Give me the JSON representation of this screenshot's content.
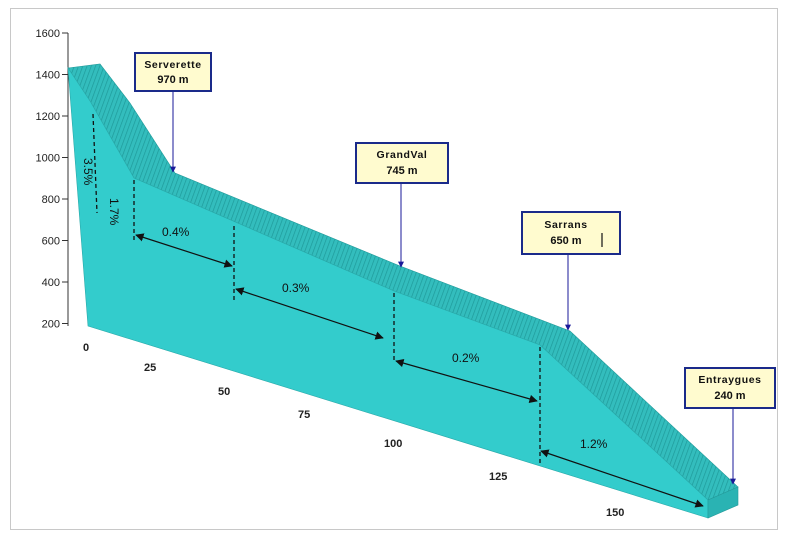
{
  "y_axis": {
    "ticks": [
      "1600",
      "1400",
      "1200",
      "1000",
      "800",
      "600",
      "400",
      "200"
    ]
  },
  "x_axis": {
    "ticks": [
      "0",
      "25",
      "50",
      "75",
      "100",
      "125",
      "150"
    ]
  },
  "slopes": [
    "3.5%",
    "1.7%",
    "0.4%",
    "0.3%",
    "0.2%",
    "1.2%"
  ],
  "callouts": [
    {
      "name": "Serverette",
      "value": "970 m"
    },
    {
      "name": "GrandVal",
      "value": "745 m"
    },
    {
      "name": "Sarrans",
      "value": "650 m"
    },
    {
      "name": "Entraygues",
      "value": "240 m"
    }
  ],
  "colors": {
    "face": "#33cccc",
    "top": "#33b5b5",
    "stripe": "#1e8f8f",
    "box_border": "#1a2a8a",
    "box_fill": "#fffbcf",
    "pointer": "#1a1a99"
  }
}
